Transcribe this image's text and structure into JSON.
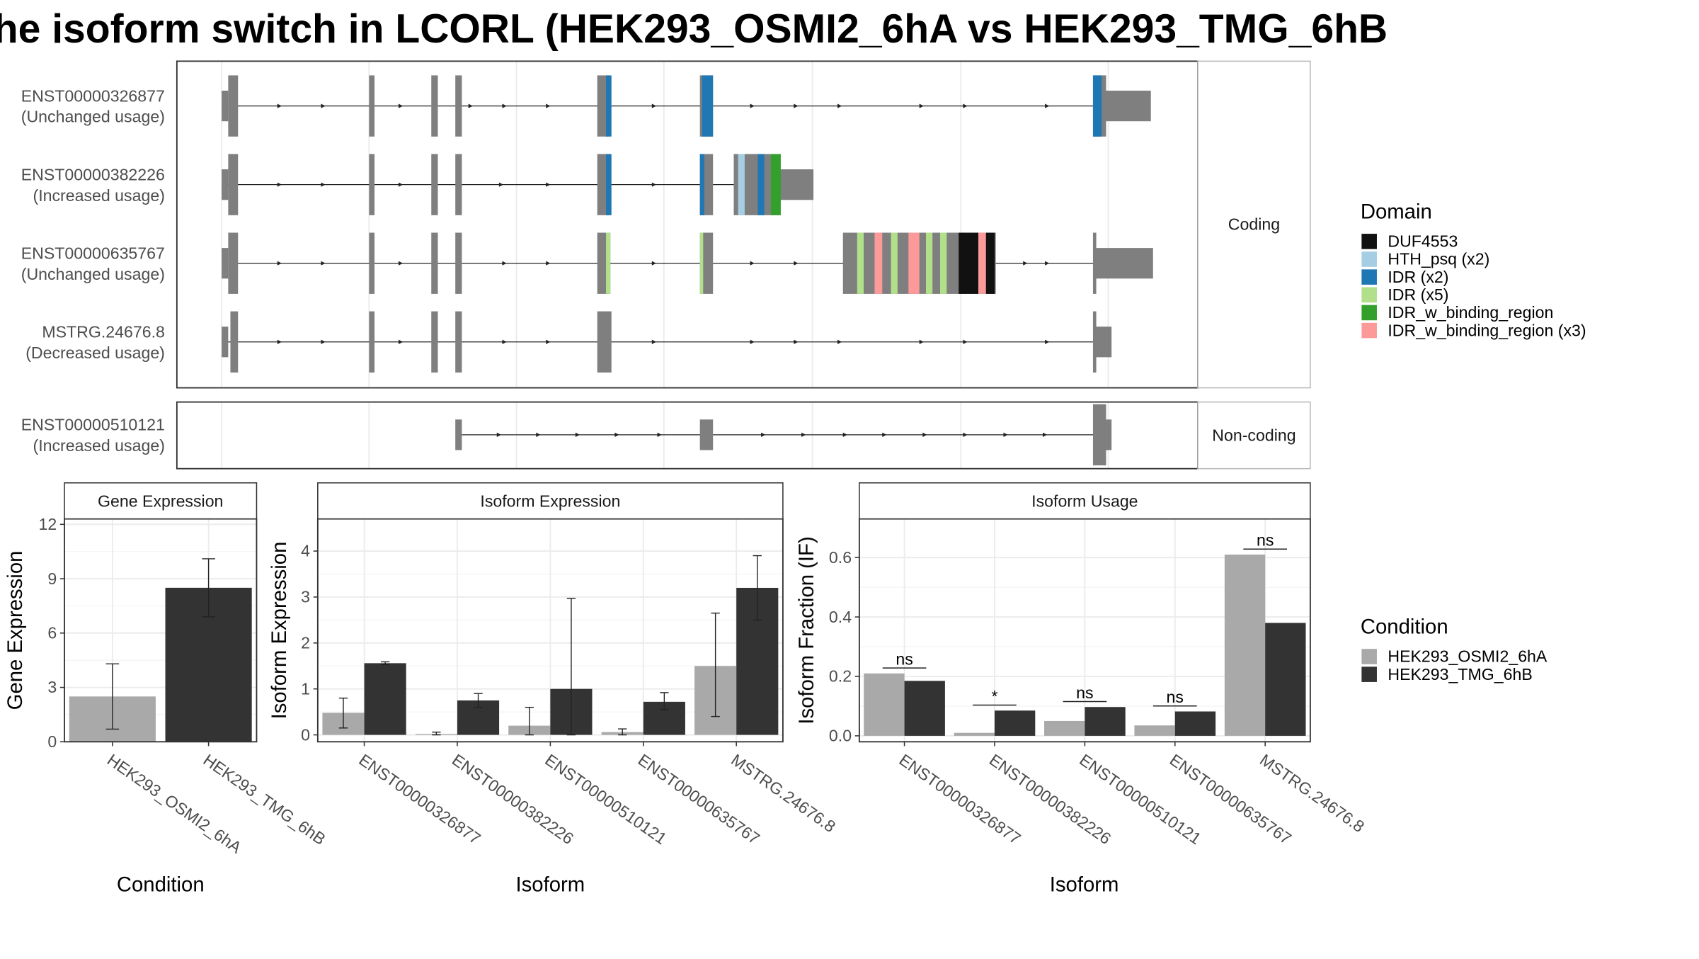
{
  "title": "he isoform switch in LCORL (HEK293_OSMI2_6hA vs HEK293_TMG_6hB",
  "colors": {
    "exon": "#7f7f7f",
    "cond_a": "#a9a9a9",
    "cond_b": "#333333",
    "grid": "#ebebeb",
    "DUF4553": "#111111",
    "HTH_psq (x2)": "#a6cee3",
    "IDR (x2)": "#1f78b4",
    "IDR (x5)": "#b2df8a",
    "IDR_w_binding_region": "#33a02c",
    "IDR_w_binding_region (x3)": "#fb9a99"
  },
  "chart_data": [
    {
      "type": "gene-structure",
      "panels": [
        {
          "strip": "Coding",
          "isoforms": [
            {
              "id": "ENST00000326877",
              "usage": "(Unchanged usage)"
            },
            {
              "id": "ENST00000382226",
              "usage": "(Increased usage)"
            },
            {
              "id": "ENST00000635767",
              "usage": "(Unchanged usage)"
            },
            {
              "id": "MSTRG.24676.8",
              "usage": "(Decreased usage)"
            }
          ]
        },
        {
          "strip": "Non-coding",
          "isoforms": [
            {
              "id": "ENST00000510121",
              "usage": "(Increased usage)"
            }
          ]
        }
      ],
      "legend_title": "Domain",
      "legend": [
        "DUF4553",
        "HTH_psq (x2)",
        "IDR (x2)",
        "IDR (x5)",
        "IDR_w_binding_region",
        "IDR_w_binding_region (x3)"
      ]
    },
    {
      "type": "bar",
      "title": "Gene Expression",
      "xlabel": "Condition",
      "ylabel": "Gene Expression",
      "ylim": [
        0,
        12.3
      ],
      "yticks": [
        0,
        3,
        6,
        9,
        12
      ],
      "categories": [
        "HEK293_OSMI2_6hA",
        "HEK293_TMG_6hB"
      ],
      "values": [
        2.5,
        8.5
      ],
      "errors": [
        [
          0.7,
          4.3
        ],
        [
          6.9,
          10.1
        ]
      ]
    },
    {
      "type": "bar",
      "title": "Isoform Expression",
      "xlabel": "Isoform",
      "ylabel": "Isoform Expression",
      "ylim": [
        -0.15,
        4.7
      ],
      "yticks": [
        0,
        1,
        2,
        3,
        4
      ],
      "categories": [
        "ENST00000326877",
        "ENST00000382226",
        "ENST00000510121",
        "ENST00000635767",
        "MSTRG.24676.8"
      ],
      "series": [
        {
          "name": "HEK293_OSMI2_6hA",
          "values": [
            0.48,
            0.02,
            0.2,
            0.06,
            1.5
          ],
          "errors": [
            [
              0.15,
              0.8
            ],
            [
              0.0,
              0.06
            ],
            [
              0.0,
              0.6
            ],
            [
              0.0,
              0.13
            ],
            [
              0.4,
              2.65
            ]
          ]
        },
        {
          "name": "HEK293_TMG_6hB",
          "values": [
            1.56,
            0.75,
            1.0,
            0.72,
            3.2
          ],
          "errors": [
            [
              1.53,
              1.59
            ],
            [
              0.6,
              0.9
            ],
            [
              0.0,
              2.97
            ],
            [
              0.55,
              0.92
            ],
            [
              2.5,
              3.9
            ]
          ]
        }
      ]
    },
    {
      "type": "bar",
      "title": "Isoform Usage",
      "xlabel": "Isoform",
      "ylabel": "Isoform Fraction (IF)",
      "ylim": [
        -0.02,
        0.73
      ],
      "yticks": [
        0.0,
        0.2,
        0.4,
        0.6
      ],
      "ytick_labels": [
        "0.0",
        "0.2",
        "0.4",
        "0.6"
      ],
      "categories": [
        "ENST00000326877",
        "ENST00000382226",
        "ENST00000510121",
        "ENST00000635767",
        "MSTRG.24676.8"
      ],
      "series": [
        {
          "name": "HEK293_OSMI2_6hA",
          "values": [
            0.21,
            0.01,
            0.05,
            0.035,
            0.61
          ]
        },
        {
          "name": "HEK293_TMG_6hB",
          "values": [
            0.185,
            0.085,
            0.097,
            0.082,
            0.38
          ]
        }
      ],
      "significance": [
        "ns",
        "*",
        "ns",
        "ns",
        "ns"
      ]
    }
  ],
  "condition_legend": {
    "title": "Condition",
    "items": [
      "HEK293_OSMI2_6hA",
      "HEK293_TMG_6hB"
    ]
  }
}
